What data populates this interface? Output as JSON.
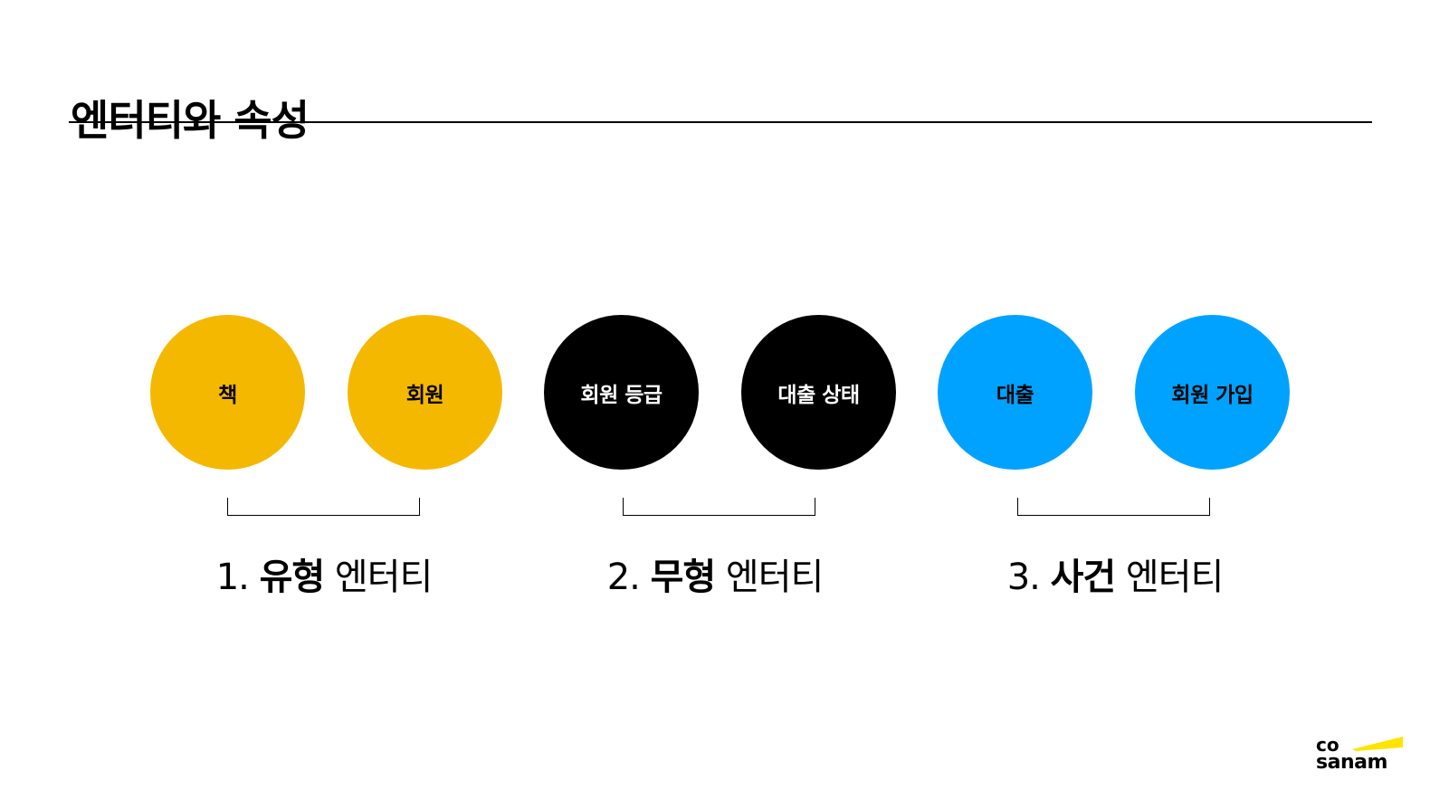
{
  "title": "엔터티와 속성",
  "colors": {
    "tangible": "#f5b800",
    "intangible": "#000000",
    "event": "#00a2ff",
    "logo_accent": "#ffe400"
  },
  "groups": [
    {
      "number": "1.",
      "type_word": "유형",
      "suffix": "엔터티",
      "color": "tangible",
      "circles": [
        "책",
        "회원"
      ]
    },
    {
      "number": "2.",
      "type_word": "무형",
      "suffix": "엔터티",
      "color": "intangible",
      "circles": [
        "회원 등급",
        "대출 상태"
      ]
    },
    {
      "number": "3.",
      "type_word": "사건",
      "suffix": "엔터티",
      "color": "event",
      "circles": [
        "대출",
        "회원 가입"
      ]
    }
  ],
  "logo": {
    "line1": "co",
    "line2": "sanam"
  }
}
